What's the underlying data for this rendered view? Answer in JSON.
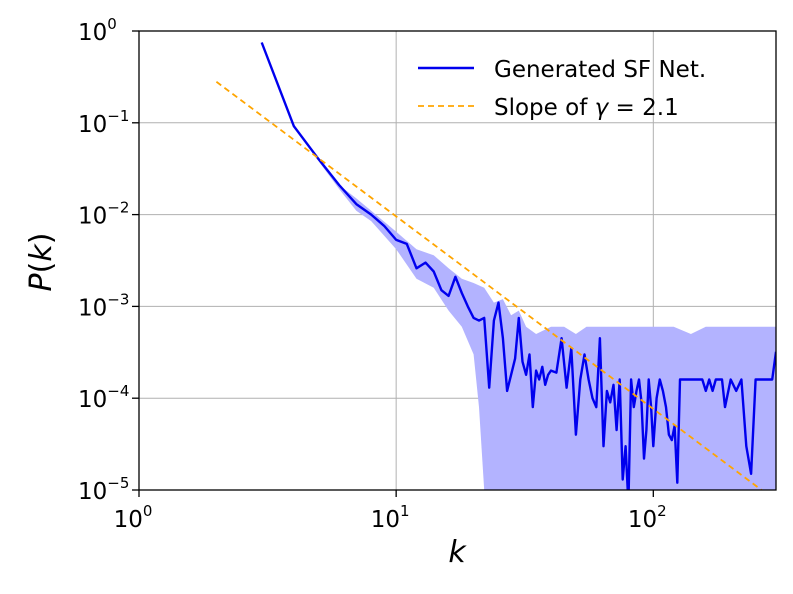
{
  "chart_data": {
    "type": "line",
    "xscale": "log",
    "yscale": "log",
    "xlim": [
      1,
      300
    ],
    "ylim": [
      1e-05,
      1
    ],
    "xlabel": "k",
    "ylabel_parts": {
      "p": "P",
      "open": "(",
      "k": "k",
      "close": ")"
    },
    "grid": true,
    "legend_position": "top-right",
    "x_ticks": [
      {
        "base": "10",
        "exp": "0",
        "value": 1
      },
      {
        "base": "10",
        "exp": "1",
        "value": 10
      },
      {
        "base": "10",
        "exp": "2",
        "value": 100
      }
    ],
    "y_ticks": [
      {
        "base": "10",
        "exp": "0",
        "value": 1
      },
      {
        "base": "10",
        "exp": "−1",
        "value": 0.1
      },
      {
        "base": "10",
        "exp": "−2",
        "value": 0.01
      },
      {
        "base": "10",
        "exp": "−3",
        "value": 0.001
      },
      {
        "base": "10",
        "exp": "−4",
        "value": 0.0001
      },
      {
        "base": "10",
        "exp": "−5",
        "value": 1e-05
      }
    ],
    "legend": [
      {
        "kind": "solid",
        "label": "Generated SF Net."
      },
      {
        "kind": "dashed",
        "label_prefix": "Slope of ",
        "gamma": "γ",
        "label_suffix": " = 2.1"
      }
    ],
    "series": [
      {
        "name": "Generated SF Net.",
        "color": "#0000ee",
        "band_color": "#b3b3ff",
        "points": [
          [
            3,
            0.75
          ],
          [
            4,
            0.092
          ],
          [
            5,
            0.04
          ],
          [
            6,
            0.021
          ],
          [
            7,
            0.013
          ],
          [
            8,
            0.01
          ],
          [
            9,
            0.0075
          ],
          [
            10,
            0.0053
          ],
          [
            11,
            0.0048
          ],
          [
            12,
            0.0026
          ],
          [
            13,
            0.003
          ],
          [
            14,
            0.0024
          ],
          [
            15,
            0.0015
          ],
          [
            16,
            0.0013
          ],
          [
            17,
            0.0021
          ],
          [
            18,
            0.0014
          ],
          [
            19,
            0.001
          ],
          [
            20,
            0.00075
          ],
          [
            21,
            0.0007
          ],
          [
            22,
            0.00075
          ],
          [
            23,
            0.00013
          ],
          [
            24,
            0.0007
          ],
          [
            25,
            0.0011
          ],
          [
            26,
            0.00045
          ],
          [
            27,
            0.00012
          ],
          [
            28,
            0.00018
          ],
          [
            29,
            0.00027
          ],
          [
            30,
            0.00075
          ],
          [
            31,
            0.00025
          ],
          [
            32,
            0.00018
          ],
          [
            33,
            0.0003
          ],
          [
            34,
            8e-05
          ],
          [
            35,
            0.0002
          ],
          [
            36,
            0.00016
          ],
          [
            37,
            0.00022
          ],
          [
            38,
            0.00014
          ],
          [
            39,
            0.00018
          ],
          [
            40,
            0.0002
          ],
          [
            42,
            0.00019
          ],
          [
            44,
            0.00045
          ],
          [
            46,
            0.00013
          ],
          [
            48,
            0.00035
          ],
          [
            50,
            4e-05
          ],
          [
            52,
            0.00016
          ],
          [
            54,
            0.0003
          ],
          [
            56,
            0.00016
          ],
          [
            58,
            0.0001
          ],
          [
            60,
            8e-05
          ],
          [
            62,
            0.00045
          ],
          [
            64,
            3e-05
          ],
          [
            66,
            0.00012
          ],
          [
            68,
            9e-05
          ],
          [
            70,
            0.00014
          ],
          [
            72,
            4.5e-05
          ],
          [
            74,
            0.00016
          ],
          [
            76,
            1.3e-05
          ],
          [
            78,
            3e-05
          ],
          [
            80,
            7e-06
          ],
          [
            82,
            0.00016
          ],
          [
            84,
            8e-05
          ],
          [
            86,
            0.00012
          ],
          [
            88,
            0.00016
          ],
          [
            90,
            9e-05
          ],
          [
            92,
            2.2e-05
          ],
          [
            94,
            4.5e-05
          ],
          [
            96,
            0.00016
          ],
          [
            98,
            8e-05
          ],
          [
            100,
            3e-05
          ],
          [
            103,
            0.0001
          ],
          [
            106,
            0.00016
          ],
          [
            109,
            0.00012
          ],
          [
            112,
            8e-05
          ],
          [
            115,
            4e-05
          ],
          [
            118,
            3.5e-05
          ],
          [
            121,
            5e-05
          ],
          [
            124,
            1.2e-05
          ],
          [
            127,
            0.00016
          ],
          [
            130,
            0.00016
          ],
          [
            135,
            0.00016
          ],
          [
            140,
            0.00016
          ],
          [
            145,
            0.00016
          ],
          [
            150,
            0.00016
          ],
          [
            155,
            0.00016
          ],
          [
            160,
            0.00012
          ],
          [
            165,
            0.00016
          ],
          [
            170,
            0.00012
          ],
          [
            175,
            0.00016
          ],
          [
            180,
            0.00016
          ],
          [
            185,
            0.00016
          ],
          [
            190,
            8e-05
          ],
          [
            200,
            0.00016
          ],
          [
            210,
            0.00012
          ],
          [
            220,
            0.00016
          ],
          [
            230,
            3e-05
          ],
          [
            240,
            1.5e-05
          ],
          [
            250,
            0.00016
          ],
          [
            260,
            0.00016
          ],
          [
            270,
            0.00016
          ],
          [
            280,
            0.00016
          ],
          [
            290,
            0.00016
          ],
          [
            300,
            0.00032
          ]
        ],
        "band_upper": [
          [
            3,
            0.75
          ],
          [
            4,
            0.092
          ],
          [
            5,
            0.04
          ],
          [
            6,
            0.021
          ],
          [
            7,
            0.015
          ],
          [
            8,
            0.011
          ],
          [
            10,
            0.0065
          ],
          [
            12,
            0.0042
          ],
          [
            14,
            0.0036
          ],
          [
            16,
            0.0026
          ],
          [
            18,
            0.002
          ],
          [
            20,
            0.0018
          ],
          [
            22,
            0.0016
          ],
          [
            24,
            0.0011
          ],
          [
            26,
            0.0012
          ],
          [
            28,
            0.0008
          ],
          [
            30,
            0.0009
          ],
          [
            32,
            0.0006
          ],
          [
            35,
            0.0005
          ],
          [
            40,
            0.0006
          ],
          [
            45,
            0.0006
          ],
          [
            50,
            0.0005
          ],
          [
            55,
            0.0006
          ],
          [
            60,
            0.0006
          ],
          [
            70,
            0.0006
          ],
          [
            80,
            0.0006
          ],
          [
            90,
            0.0006
          ],
          [
            100,
            0.0006
          ],
          [
            120,
            0.0006
          ],
          [
            140,
            0.0005
          ],
          [
            160,
            0.0006
          ],
          [
            180,
            0.0006
          ],
          [
            200,
            0.0006
          ],
          [
            230,
            0.0006
          ],
          [
            260,
            0.0006
          ],
          [
            300,
            0.0006
          ]
        ],
        "band_lower": [
          [
            3,
            0.75
          ],
          [
            4,
            0.092
          ],
          [
            5,
            0.038
          ],
          [
            6,
            0.019
          ],
          [
            7,
            0.011
          ],
          [
            8,
            0.0085
          ],
          [
            10,
            0.0042
          ],
          [
            12,
            0.002
          ],
          [
            14,
            0.0016
          ],
          [
            16,
            0.0009
          ],
          [
            18,
            0.0006
          ],
          [
            20,
            0.0003
          ],
          [
            21,
            8e-05
          ],
          [
            22,
            1e-05
          ],
          [
            300,
            1e-05
          ]
        ]
      },
      {
        "name": "Slope of γ = 2.1",
        "color": "#ffa500",
        "style": "dashed",
        "points": [
          [
            2,
            0.28
          ],
          [
            270,
            9.5e-06
          ]
        ]
      }
    ]
  }
}
